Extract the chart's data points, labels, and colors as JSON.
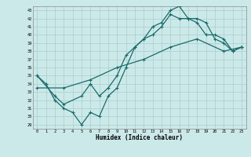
{
  "xlabel": "Humidex (Indice chaleur)",
  "bg_color": "#cce9e9",
  "grid_color": "#aacccc",
  "line_color": "#1a6b6b",
  "xlim": [
    -0.5,
    23.5
  ],
  "ylim": [
    28.5,
    43.5
  ],
  "xticks": [
    0,
    1,
    2,
    3,
    4,
    5,
    6,
    7,
    8,
    9,
    10,
    11,
    12,
    13,
    14,
    15,
    16,
    17,
    18,
    19,
    20,
    21,
    22,
    23
  ],
  "yticks": [
    29,
    30,
    31,
    32,
    33,
    34,
    35,
    36,
    37,
    38,
    39,
    40,
    41,
    42,
    43
  ],
  "line1_x": [
    0,
    1,
    2,
    3,
    4,
    5,
    6,
    7,
    8,
    9,
    10,
    11,
    12,
    13,
    14,
    15,
    16,
    17,
    18,
    19,
    20,
    21,
    22,
    23
  ],
  "line1_y": [
    35,
    34,
    32,
    31,
    30.5,
    29,
    30.5,
    30,
    32.5,
    33.5,
    36,
    38.5,
    39.5,
    41.0,
    41.5,
    43.0,
    43.5,
    42.0,
    42.0,
    41.5,
    39.5,
    39.0,
    38.0,
    38.5
  ],
  "line2_x": [
    0,
    2,
    3,
    5,
    6,
    7,
    8,
    9,
    10,
    11,
    12,
    13,
    14,
    15,
    16,
    17,
    18,
    19,
    20,
    21,
    22,
    23
  ],
  "line2_y": [
    35,
    32.5,
    31.5,
    32.5,
    34.0,
    32.5,
    33.5,
    35,
    37.5,
    38.5,
    39.5,
    40.0,
    41.0,
    42.5,
    42.0,
    42.0,
    41.5,
    40.0,
    40.0,
    39.5,
    38.0,
    38.5
  ],
  "line3_x": [
    0,
    3,
    6,
    9,
    12,
    15,
    18,
    21,
    23
  ],
  "line3_y": [
    33.5,
    33.5,
    34.5,
    36.0,
    37.0,
    38.5,
    39.5,
    38.0,
    38.5
  ]
}
